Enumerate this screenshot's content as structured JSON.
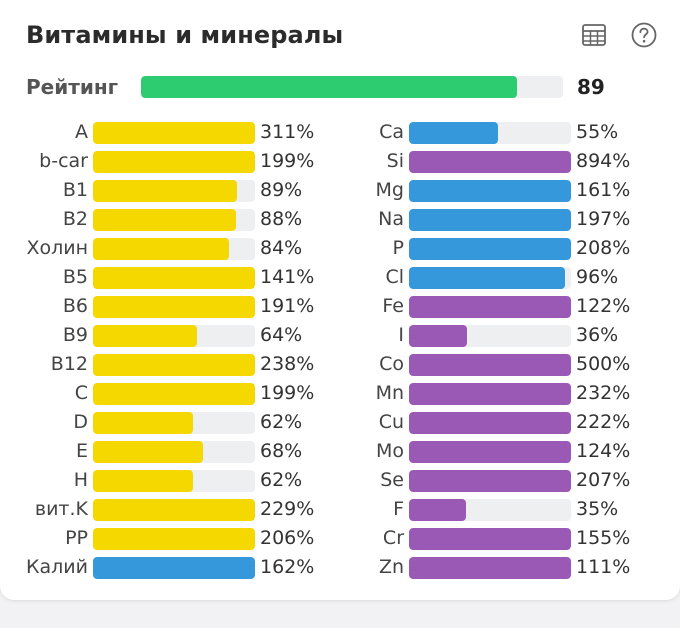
{
  "header": {
    "title": "Витамины и минералы",
    "table_icon": "table-icon",
    "help_icon": "help-circle-icon"
  },
  "rating": {
    "label": "Рейтинг",
    "value": "89",
    "fill_fraction": 0.89
  },
  "colors": {
    "vitamin": "#f5d800",
    "mineral_blue": "#3498db",
    "mineral_purple": "#9b59b6",
    "rating": "#2ecc71",
    "track": "#eeeff1"
  },
  "left": [
    {
      "name": "A",
      "pct": "311%",
      "value": 311,
      "color": "vitamin"
    },
    {
      "name": "b-car",
      "pct": "199%",
      "value": 199,
      "color": "vitamin"
    },
    {
      "name": "B1",
      "pct": "89%",
      "value": 89,
      "color": "vitamin"
    },
    {
      "name": "B2",
      "pct": "88%",
      "value": 88,
      "color": "vitamin"
    },
    {
      "name": "Холин",
      "pct": "84%",
      "value": 84,
      "color": "vitamin"
    },
    {
      "name": "B5",
      "pct": "141%",
      "value": 141,
      "color": "vitamin"
    },
    {
      "name": "B6",
      "pct": "191%",
      "value": 191,
      "color": "vitamin"
    },
    {
      "name": "B9",
      "pct": "64%",
      "value": 64,
      "color": "vitamin"
    },
    {
      "name": "B12",
      "pct": "238%",
      "value": 238,
      "color": "vitamin"
    },
    {
      "name": "C",
      "pct": "199%",
      "value": 199,
      "color": "vitamin"
    },
    {
      "name": "D",
      "pct": "62%",
      "value": 62,
      "color": "vitamin"
    },
    {
      "name": "E",
      "pct": "68%",
      "value": 68,
      "color": "vitamin"
    },
    {
      "name": "H",
      "pct": "62%",
      "value": 62,
      "color": "vitamin"
    },
    {
      "name": "вит.K",
      "pct": "229%",
      "value": 229,
      "color": "vitamin"
    },
    {
      "name": "PP",
      "pct": "206%",
      "value": 206,
      "color": "vitamin"
    },
    {
      "name": "Калий",
      "pct": "162%",
      "value": 162,
      "color": "mineral_blue"
    }
  ],
  "right": [
    {
      "name": "Ca",
      "pct": "55%",
      "value": 55,
      "color": "mineral_blue"
    },
    {
      "name": "Si",
      "pct": "894%",
      "value": 894,
      "color": "mineral_purple"
    },
    {
      "name": "Mg",
      "pct": "161%",
      "value": 161,
      "color": "mineral_blue"
    },
    {
      "name": "Na",
      "pct": "197%",
      "value": 197,
      "color": "mineral_blue"
    },
    {
      "name": "P",
      "pct": "208%",
      "value": 208,
      "color": "mineral_blue"
    },
    {
      "name": "Cl",
      "pct": "96%",
      "value": 96,
      "color": "mineral_blue"
    },
    {
      "name": "Fe",
      "pct": "122%",
      "value": 122,
      "color": "mineral_purple"
    },
    {
      "name": "I",
      "pct": "36%",
      "value": 36,
      "color": "mineral_purple"
    },
    {
      "name": "Co",
      "pct": "500%",
      "value": 500,
      "color": "mineral_purple"
    },
    {
      "name": "Mn",
      "pct": "232%",
      "value": 232,
      "color": "mineral_purple"
    },
    {
      "name": "Cu",
      "pct": "222%",
      "value": 222,
      "color": "mineral_purple"
    },
    {
      "name": "Mo",
      "pct": "124%",
      "value": 124,
      "color": "mineral_purple"
    },
    {
      "name": "Se",
      "pct": "207%",
      "value": 207,
      "color": "mineral_purple"
    },
    {
      "name": "F",
      "pct": "35%",
      "value": 35,
      "color": "mineral_purple"
    },
    {
      "name": "Cr",
      "pct": "155%",
      "value": 155,
      "color": "mineral_purple"
    },
    {
      "name": "Zn",
      "pct": "111%",
      "value": 111,
      "color": "mineral_purple"
    }
  ]
}
